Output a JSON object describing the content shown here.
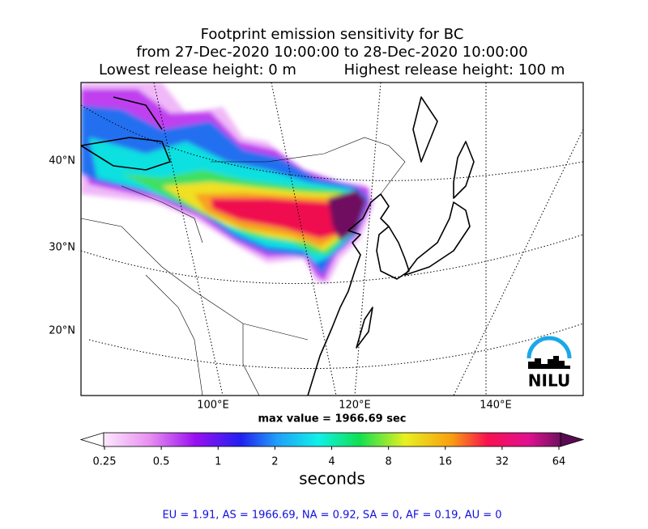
{
  "title": {
    "line1": "Footprint emission sensitivity for BC",
    "line2": "from 27-Dec-2020 10:00:00 to 28-Dec-2020 10:00:00",
    "line3_left": "Lowest release height: 0 m",
    "line3_right": "Highest release height: 100 m"
  },
  "map": {
    "lat_labels": [
      "40°N",
      "30°N",
      "20°N"
    ],
    "lon_labels": [
      "100°E",
      "120°E",
      "140°E"
    ],
    "max_value": "max value = 1966.69 sec",
    "logo": "NILU"
  },
  "colorbar": {
    "ticks": [
      "0.25",
      "0.5",
      "1",
      "2",
      "4",
      "8",
      "16",
      "32",
      "64"
    ],
    "label": "seconds"
  },
  "footer": "EU = 1.91,  AS = 1966.69,  NA = 0.92,  SA = 0,  AF = 0.19,  AU = 0"
}
